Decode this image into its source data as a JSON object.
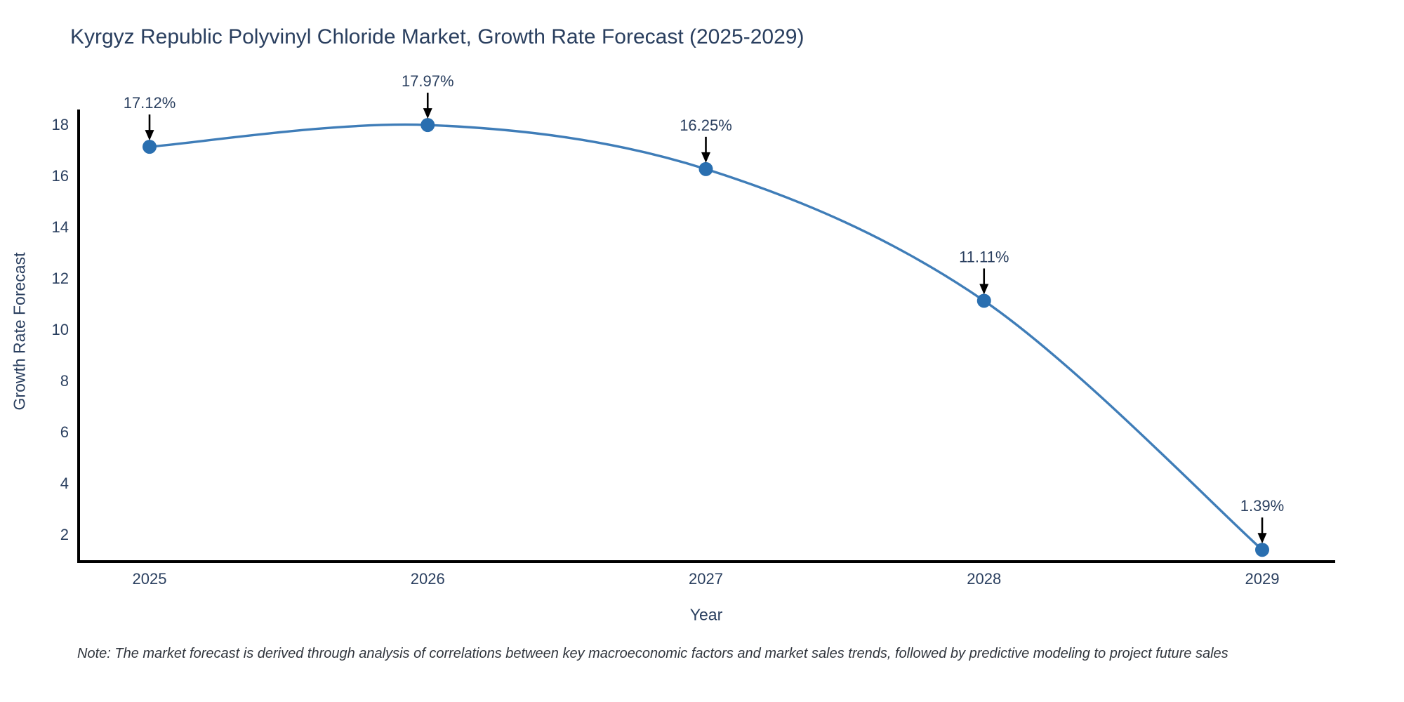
{
  "chart_data": {
    "type": "line",
    "title": "Kyrgyz Republic Polyvinyl Chloride Market, Growth Rate Forecast (2025-2029)",
    "xlabel": "Year",
    "ylabel": "Growth Rate Forecast",
    "categories": [
      "2025",
      "2026",
      "2027",
      "2028",
      "2029"
    ],
    "values": [
      17.12,
      17.97,
      16.25,
      11.11,
      1.39
    ],
    "point_labels": [
      "17.12%",
      "17.97%",
      "16.25%",
      "11.11%",
      "1.39%"
    ],
    "yticks": [
      2,
      4,
      6,
      8,
      10,
      12,
      14,
      16,
      18
    ],
    "ylim": [
      0.93,
      18.52
    ],
    "grid": false,
    "legend": "none",
    "line_shape": "spline",
    "line_color": "#3f7db8",
    "marker_color": "#2a6fb0",
    "axis_color": "#000000",
    "text_color": "#2a3f5f",
    "annotation_arrow_color": "#000000",
    "note": "Note: The market forecast is derived through analysis of correlations between key macroeconomic factors and market sales trends, followed by predictive modeling to project future sales"
  }
}
